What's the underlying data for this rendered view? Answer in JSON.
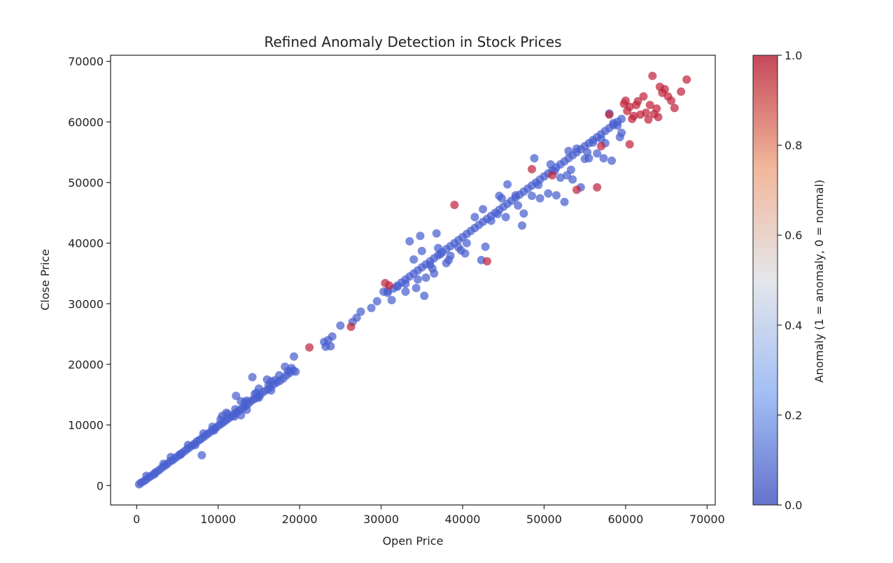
{
  "chart_data": {
    "type": "scatter",
    "title": "Refined Anomaly Detection in Stock Prices",
    "xlabel": "Open Price",
    "ylabel": "Close Price",
    "xlim": [
      -3200,
      71000
    ],
    "ylim": [
      -3200,
      71000
    ],
    "xticks": [
      0,
      10000,
      20000,
      30000,
      40000,
      50000,
      60000,
      70000
    ],
    "yticks": [
      0,
      10000,
      20000,
      30000,
      40000,
      50000,
      60000,
      70000
    ],
    "xtick_labels": [
      "0",
      "10000",
      "20000",
      "30000",
      "40000",
      "50000",
      "60000",
      "70000"
    ],
    "ytick_labels": [
      "0",
      "10000",
      "20000",
      "30000",
      "40000",
      "50000",
      "60000",
      "70000"
    ],
    "grid": false,
    "colorbar": {
      "label": "Anomaly (1 = anomaly, 0 = normal)",
      "range": [
        0.0,
        1.0
      ],
      "ticks": [
        0.0,
        0.2,
        0.4,
        0.6,
        0.8,
        1.0
      ],
      "tick_labels": [
        "0.0",
        "0.2",
        "0.4",
        "0.6",
        "0.8",
        "1.0"
      ],
      "colormap": "coolwarm",
      "low_color": "#3b4cc0",
      "high_color": "#b40426"
    },
    "series": [
      {
        "anomaly": 0,
        "color": "#3b4cc0",
        "points": [
          [
            300,
            200
          ],
          [
            500,
            450
          ],
          [
            800,
            650
          ],
          [
            1100,
            900
          ],
          [
            1400,
            1250
          ],
          [
            1700,
            1500
          ],
          [
            2000,
            1800
          ],
          [
            2300,
            2150
          ],
          [
            2600,
            2400
          ],
          [
            2900,
            2700
          ],
          [
            3200,
            3050
          ],
          [
            3500,
            3300
          ],
          [
            3800,
            3600
          ],
          [
            4100,
            4000
          ],
          [
            4400,
            4150
          ],
          [
            4700,
            4500
          ],
          [
            5000,
            4800
          ],
          [
            5300,
            5150
          ],
          [
            5600,
            5400
          ],
          [
            5900,
            5700
          ],
          [
            6200,
            6000
          ],
          [
            6500,
            6300
          ],
          [
            6800,
            6600
          ],
          [
            7100,
            6900
          ],
          [
            7400,
            7300
          ],
          [
            7700,
            7500
          ],
          [
            8000,
            7800
          ],
          [
            8300,
            8100
          ],
          [
            8600,
            8400
          ],
          [
            8900,
            8700
          ],
          [
            9200,
            9000
          ],
          [
            9500,
            9300
          ],
          [
            9800,
            9600
          ],
          [
            10100,
            9950
          ],
          [
            10400,
            10200
          ],
          [
            10700,
            10500
          ],
          [
            11000,
            10800
          ],
          [
            11300,
            11100
          ],
          [
            11600,
            11400
          ],
          [
            11900,
            11700
          ],
          [
            12200,
            12000
          ],
          [
            12500,
            12300
          ],
          [
            12800,
            12600
          ],
          [
            13100,
            12900
          ],
          [
            13400,
            13200
          ],
          [
            13700,
            13500
          ],
          [
            14000,
            13900
          ],
          [
            14300,
            14200
          ],
          [
            14600,
            14400
          ],
          [
            14900,
            14700
          ],
          [
            1200,
            1600
          ],
          [
            2200,
            1900
          ],
          [
            3300,
            3600
          ],
          [
            4200,
            4700
          ],
          [
            5400,
            5100
          ],
          [
            6300,
            6700
          ],
          [
            7200,
            6700
          ],
          [
            8200,
            8600
          ],
          [
            9300,
            9700
          ],
          [
            10300,
            10900
          ],
          [
            11200,
            11800
          ],
          [
            12100,
            12600
          ],
          [
            13300,
            13800
          ],
          [
            15200,
            15000
          ],
          [
            15600,
            15500
          ],
          [
            16000,
            15800
          ],
          [
            16400,
            16200
          ],
          [
            16800,
            16700
          ],
          [
            17200,
            17000
          ],
          [
            17600,
            17300
          ],
          [
            18000,
            17700
          ],
          [
            18400,
            18200
          ],
          [
            18800,
            18600
          ],
          [
            19200,
            19000
          ],
          [
            19500,
            18800
          ],
          [
            19000,
            19400
          ],
          [
            15000,
            16000
          ],
          [
            16500,
            17200
          ],
          [
            14500,
            15100
          ],
          [
            17500,
            18200
          ],
          [
            14200,
            17900
          ],
          [
            16000,
            17500
          ],
          [
            18200,
            19600
          ],
          [
            19300,
            21300
          ],
          [
            12200,
            14800
          ],
          [
            11000,
            12000
          ],
          [
            9500,
            9100
          ],
          [
            8000,
            5000
          ],
          [
            10500,
            11500
          ],
          [
            12000,
            11400
          ],
          [
            13500,
            12500
          ],
          [
            15000,
            14500
          ],
          [
            16500,
            15700
          ],
          [
            17000,
            17400
          ],
          [
            18600,
            18900
          ],
          [
            13500,
            14000
          ],
          [
            12800,
            13900
          ],
          [
            14700,
            15300
          ],
          [
            16200,
            16600
          ],
          [
            12800,
            11600
          ],
          [
            23000,
            23700
          ],
          [
            23500,
            24000
          ],
          [
            24000,
            24600
          ],
          [
            23200,
            22900
          ],
          [
            23800,
            23000
          ],
          [
            25000,
            26400
          ],
          [
            26500,
            27000
          ],
          [
            27000,
            27700
          ],
          [
            27500,
            28700
          ],
          [
            28800,
            29300
          ],
          [
            29500,
            30400
          ],
          [
            30300,
            32000
          ],
          [
            30800,
            31800
          ],
          [
            31500,
            32500
          ],
          [
            32000,
            33000
          ],
          [
            32500,
            33500
          ],
          [
            33000,
            34000
          ],
          [
            33500,
            34500
          ],
          [
            34000,
            35000
          ],
          [
            34500,
            35500
          ],
          [
            35000,
            36000
          ],
          [
            35500,
            36500
          ],
          [
            36000,
            37000
          ],
          [
            36500,
            37500
          ],
          [
            37000,
            38000
          ],
          [
            37500,
            38500
          ],
          [
            38000,
            39000
          ],
          [
            38500,
            39500
          ],
          [
            39000,
            40000
          ],
          [
            39500,
            40500
          ],
          [
            40000,
            41000
          ],
          [
            40500,
            41500
          ],
          [
            41000,
            42000
          ],
          [
            41500,
            42500
          ],
          [
            42000,
            43000
          ],
          [
            42500,
            43500
          ],
          [
            43000,
            44000
          ],
          [
            43500,
            44500
          ],
          [
            44000,
            45000
          ],
          [
            44500,
            45500
          ],
          [
            45000,
            46000
          ],
          [
            45500,
            46500
          ],
          [
            46000,
            47000
          ],
          [
            46500,
            47500
          ],
          [
            47000,
            48000
          ],
          [
            47500,
            48500
          ],
          [
            48000,
            49000
          ],
          [
            48500,
            49500
          ],
          [
            49000,
            50000
          ],
          [
            49500,
            50500
          ],
          [
            50000,
            51000
          ],
          [
            50500,
            51500
          ],
          [
            51000,
            52000
          ],
          [
            51500,
            52500
          ],
          [
            52000,
            53000
          ],
          [
            52500,
            53500
          ],
          [
            53000,
            54000
          ],
          [
            53500,
            54500
          ],
          [
            54000,
            55000
          ],
          [
            54500,
            55500
          ],
          [
            55000,
            56000
          ],
          [
            55500,
            56500
          ],
          [
            56000,
            57000
          ],
          [
            56500,
            57500
          ],
          [
            57000,
            58000
          ],
          [
            57500,
            58500
          ],
          [
            58000,
            59000
          ],
          [
            58500,
            59500
          ],
          [
            59000,
            60000
          ],
          [
            59500,
            60500
          ],
          [
            32000,
            32800
          ],
          [
            33000,
            33300
          ],
          [
            34000,
            37300
          ],
          [
            35000,
            38700
          ],
          [
            36000,
            36400
          ],
          [
            37000,
            39200
          ],
          [
            38000,
            36700
          ],
          [
            34500,
            34000
          ],
          [
            35500,
            34300
          ],
          [
            36500,
            35000
          ],
          [
            38500,
            37900
          ],
          [
            39500,
            39300
          ],
          [
            40500,
            40000
          ],
          [
            41500,
            44300
          ],
          [
            42500,
            45600
          ],
          [
            43500,
            43700
          ],
          [
            44500,
            47800
          ],
          [
            45500,
            49700
          ],
          [
            46500,
            47900
          ],
          [
            47500,
            44900
          ],
          [
            48500,
            47800
          ],
          [
            49500,
            47400
          ],
          [
            50500,
            48200
          ],
          [
            51500,
            47900
          ],
          [
            52500,
            46800
          ],
          [
            53000,
            55200
          ],
          [
            54000,
            55600
          ],
          [
            55000,
            53900
          ],
          [
            56000,
            56600
          ],
          [
            57000,
            57200
          ],
          [
            58000,
            61400
          ],
          [
            59000,
            59400
          ],
          [
            59500,
            58200
          ],
          [
            58500,
            59800
          ],
          [
            57500,
            56500
          ],
          [
            56500,
            54800
          ],
          [
            55500,
            54000
          ],
          [
            54500,
            49200
          ],
          [
            53500,
            50500
          ],
          [
            52000,
            50800
          ],
          [
            33500,
            40300
          ],
          [
            34800,
            41200
          ],
          [
            36800,
            41600
          ],
          [
            39800,
            38800
          ],
          [
            42800,
            39400
          ],
          [
            44800,
            47400
          ],
          [
            46800,
            46200
          ],
          [
            48800,
            54000
          ],
          [
            50800,
            53000
          ],
          [
            52800,
            51200
          ],
          [
            30800,
            32100
          ],
          [
            31300,
            30600
          ],
          [
            33000,
            32000
          ],
          [
            34300,
            32600
          ],
          [
            35300,
            31300
          ],
          [
            36300,
            35800
          ],
          [
            37300,
            38200
          ],
          [
            38300,
            37200
          ],
          [
            40300,
            38300
          ],
          [
            42300,
            37200
          ],
          [
            44300,
            44800
          ],
          [
            45300,
            44300
          ],
          [
            47300,
            42900
          ],
          [
            49300,
            49600
          ],
          [
            51300,
            51900
          ],
          [
            53300,
            52100
          ],
          [
            55300,
            55000
          ],
          [
            57300,
            54000
          ],
          [
            58300,
            53600
          ],
          [
            59300,
            57500
          ]
        ]
      },
      {
        "anomaly": 1,
        "color": "#b40426",
        "points": [
          [
            21200,
            22800
          ],
          [
            26300,
            26200
          ],
          [
            30500,
            33400
          ],
          [
            31000,
            33000
          ],
          [
            39000,
            46300
          ],
          [
            43000,
            37000
          ],
          [
            48500,
            52200
          ],
          [
            51000,
            51200
          ],
          [
            54000,
            48800
          ],
          [
            56500,
            49200
          ],
          [
            57000,
            56000
          ],
          [
            58000,
            61200
          ],
          [
            60000,
            63500
          ],
          [
            60500,
            62500
          ],
          [
            61000,
            61000
          ],
          [
            61300,
            62800
          ],
          [
            61800,
            61200
          ],
          [
            62200,
            64200
          ],
          [
            62500,
            61500
          ],
          [
            63000,
            62800
          ],
          [
            63300,
            67600
          ],
          [
            63500,
            61300
          ],
          [
            63800,
            62200
          ],
          [
            64200,
            65800
          ],
          [
            64500,
            64800
          ],
          [
            64800,
            65400
          ],
          [
            65200,
            64200
          ],
          [
            65600,
            63500
          ],
          [
            66000,
            62300
          ],
          [
            66800,
            65000
          ],
          [
            67500,
            67000
          ],
          [
            60200,
            61800
          ],
          [
            60800,
            60500
          ],
          [
            62800,
            60400
          ],
          [
            64000,
            60800
          ],
          [
            60500,
            56300
          ],
          [
            59800,
            63000
          ],
          [
            61500,
            63400
          ]
        ]
      }
    ]
  }
}
